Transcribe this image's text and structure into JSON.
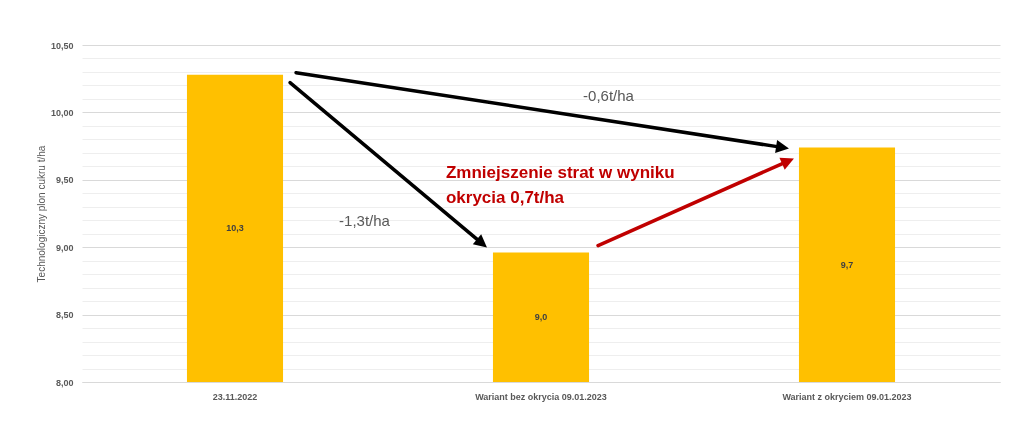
{
  "chart_data": {
    "type": "bar",
    "ylabel": "Technologiczny plon cukru t/ha",
    "categories": [
      "23.11.2022",
      "Wariant bez okrycia 09.01.2023",
      "Wariant z okryciem 09.01.2023"
    ],
    "values": [
      10.28,
      8.96,
      9.74
    ],
    "color": "#ffc000",
    "value_labels": [
      "10,3",
      "9,0",
      "9,7"
    ],
    "ylim": [
      8,
      10.5
    ],
    "yticks": [
      {
        "value": 8,
        "label": "8,00"
      },
      {
        "value": 8.1,
        "label": null
      },
      {
        "value": 8.2,
        "label": null
      },
      {
        "value": 8.3,
        "label": null
      },
      {
        "value": 8.4,
        "label": null
      },
      {
        "value": 8.5,
        "label": "8,50"
      },
      {
        "value": 8.6,
        "label": null
      },
      {
        "value": 8.7,
        "label": null
      },
      {
        "value": 8.8,
        "label": null
      },
      {
        "value": 8.9,
        "label": null
      },
      {
        "value": 9,
        "label": "9,00"
      },
      {
        "value": 9.1,
        "label": null
      },
      {
        "value": 9.2,
        "label": null
      },
      {
        "value": 9.3,
        "label": null
      },
      {
        "value": 9.4,
        "label": null
      },
      {
        "value": 9.5,
        "label": "9,50"
      },
      {
        "value": 9.6,
        "label": null
      },
      {
        "value": 9.7,
        "label": null
      },
      {
        "value": 9.8,
        "label": null
      },
      {
        "value": 9.9,
        "label": null
      },
      {
        "value": 10,
        "label": "10,00"
      },
      {
        "value": 10.1,
        "label": null
      },
      {
        "value": 10.2,
        "label": null
      },
      {
        "value": 10.3,
        "label": null
      },
      {
        "value": 10.4,
        "label": null
      },
      {
        "value": 10.5,
        "label": "10,50"
      }
    ],
    "grid": true,
    "annotations": [
      "-0,6t/ha",
      "-1,3t/ha",
      "Zmniejszenie strat w wyniku okrycia 0,7t/ha"
    ]
  }
}
